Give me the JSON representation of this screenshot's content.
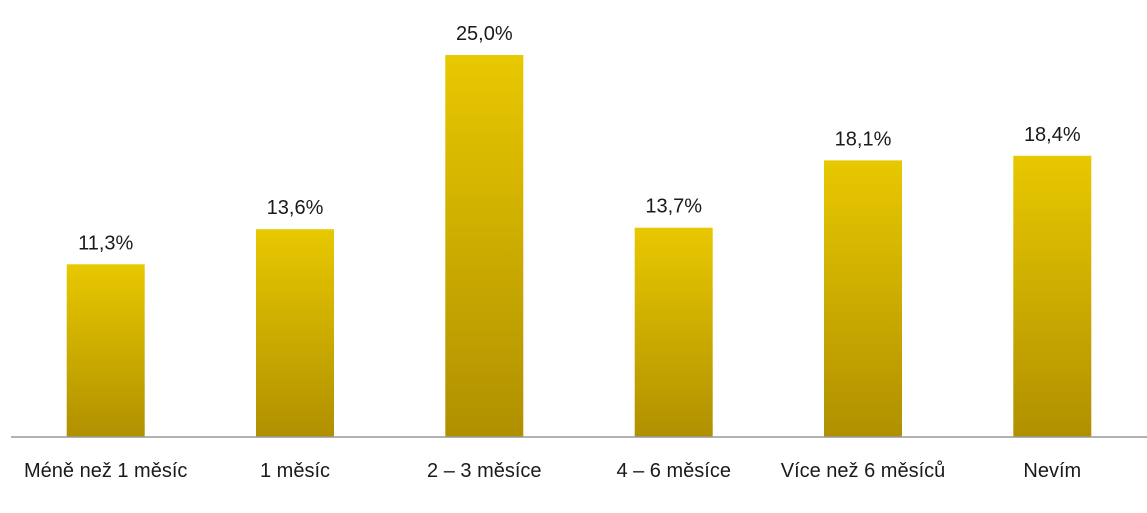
{
  "colors": {
    "bar_top": "#e8c800",
    "bar_bottom": "#b09000",
    "axis": "#999999",
    "text": "#1a1a1a"
  },
  "chart_data": {
    "type": "bar",
    "title": "",
    "xlabel": "",
    "ylabel": "",
    "categories": [
      "Méně než 1 měsíc",
      "1 měsíc",
      "2 – 3 měsíce",
      "4 – 6 měsíce",
      "Více než 6 měsíců",
      "Nevím"
    ],
    "values": [
      11.3,
      13.6,
      25.0,
      13.7,
      18.1,
      18.4
    ],
    "data_labels": [
      "11,3%",
      "13,6%",
      "25,0%",
      "13,7%",
      "18,1%",
      "18,4%"
    ],
    "ylim": [
      0,
      25.0
    ],
    "grid": false,
    "legend": "none"
  }
}
